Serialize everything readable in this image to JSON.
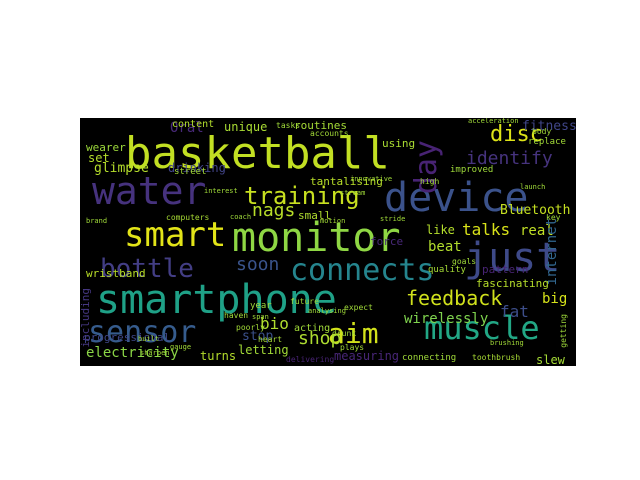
{
  "chart_data": {
    "type": "wordcloud",
    "background": "#000000",
    "colormap": "viridis",
    "words": [
      {
        "text": "basketball",
        "color": "#c2df23",
        "orientation": "horizontal"
      },
      {
        "text": "water",
        "color": "#46327e",
        "orientation": "horizontal"
      },
      {
        "text": "device",
        "color": "#3b528b",
        "orientation": "horizontal"
      },
      {
        "text": "monitor",
        "color": "#8fd744",
        "orientation": "horizontal"
      },
      {
        "text": "smart",
        "color": "#e2e418",
        "orientation": "horizontal"
      },
      {
        "text": "smartphone",
        "color": "#1fa187",
        "orientation": "horizontal"
      },
      {
        "text": "connects",
        "color": "#25858e",
        "orientation": "horizontal"
      },
      {
        "text": "just",
        "color": "#3e4a89",
        "orientation": "horizontal"
      },
      {
        "text": "muscle",
        "color": "#22a785",
        "orientation": "horizontal"
      },
      {
        "text": "aim",
        "color": "#d2e21b",
        "orientation": "horizontal"
      },
      {
        "text": "sensor",
        "color": "#365c8d",
        "orientation": "horizontal"
      },
      {
        "text": "bottle",
        "color": "#433e85",
        "orientation": "horizontal"
      },
      {
        "text": "training",
        "color": "#c8e020",
        "orientation": "horizontal"
      },
      {
        "text": "day",
        "color": "#482374",
        "orientation": "vertical"
      },
      {
        "text": "feedback",
        "color": "#d0e11c",
        "orientation": "horizontal"
      },
      {
        "text": "identify",
        "color": "#46337e",
        "orientation": "horizontal"
      },
      {
        "text": "disc",
        "color": "#dde318",
        "orientation": "horizontal"
      },
      {
        "text": "shop",
        "color": "#addc30",
        "orientation": "horizontal"
      },
      {
        "text": "soon",
        "color": "#3a548c",
        "orientation": "horizontal"
      },
      {
        "text": "nags",
        "color": "#b8de29",
        "orientation": "horizontal"
      },
      {
        "text": "talks",
        "color": "#d8e219",
        "orientation": "horizontal"
      },
      {
        "text": "glimpse",
        "color": "#b5de2b",
        "orientation": "horizontal"
      },
      {
        "text": "unique",
        "color": "#a8db34",
        "orientation": "horizontal"
      },
      {
        "text": "Oral",
        "color": "#482979",
        "orientation": "horizontal"
      },
      {
        "text": "bio",
        "color": "#b0dd2f",
        "orientation": "horizontal"
      },
      {
        "text": "drinking",
        "color": "#414487",
        "orientation": "horizontal"
      },
      {
        "text": "stop",
        "color": "#3b518b",
        "orientation": "horizontal"
      },
      {
        "text": "electricity",
        "color": "#8bd646",
        "orientation": "horizontal"
      },
      {
        "text": "letting",
        "color": "#a2da37",
        "orientation": "horizontal"
      },
      {
        "text": "progressional",
        "color": "#3f4788",
        "orientation": "horizontal"
      },
      {
        "text": "wirelessly",
        "color": "#7fd34e",
        "orientation": "horizontal"
      },
      {
        "text": "fat",
        "color": "#3d4e8a",
        "orientation": "horizontal"
      },
      {
        "text": "big",
        "color": "#d5e21a",
        "orientation": "horizontal"
      },
      {
        "text": "beat",
        "color": "#b2dd2d",
        "orientation": "horizontal"
      },
      {
        "text": "real",
        "color": "#c0df25",
        "orientation": "horizontal"
      },
      {
        "text": "internet",
        "color": "#31668e",
        "orientation": "vertical"
      },
      {
        "text": "Bluetooth",
        "color": "#c5e021",
        "orientation": "horizontal"
      },
      {
        "text": "fitness",
        "color": "#404688",
        "orientation": "horizontal"
      },
      {
        "text": "routines",
        "color": "#a5db36",
        "orientation": "horizontal"
      },
      {
        "text": "measuring",
        "color": "#482677",
        "orientation": "horizontal"
      },
      {
        "text": "turns",
        "color": "#b3dc2b",
        "orientation": "horizontal"
      },
      {
        "text": "fascinating",
        "color": "#b6de2b",
        "orientation": "horizontal"
      },
      {
        "text": "pattern",
        "color": "#482475",
        "orientation": "horizontal"
      },
      {
        "text": "wristband",
        "color": "#b9de28",
        "orientation": "horizontal"
      },
      {
        "text": "wearer",
        "color": "#9dd93b",
        "orientation": "horizontal"
      },
      {
        "text": "set",
        "color": "#b5de2b",
        "orientation": "horizontal"
      },
      {
        "text": "force",
        "color": "#482878",
        "orientation": "horizontal"
      },
      {
        "text": "acting",
        "color": "#a0da39",
        "orientation": "horizontal"
      },
      {
        "text": "slew",
        "color": "#a5db36",
        "orientation": "horizontal"
      },
      {
        "text": "including",
        "color": "#453781",
        "orientation": "vertical"
      },
      {
        "text": "content",
        "color": "#b2dd2d",
        "orientation": "horizontal"
      },
      {
        "text": "tantalising",
        "color": "#b8de29",
        "orientation": "horizontal"
      },
      {
        "text": "like",
        "color": "#b4de2c",
        "orientation": "horizontal"
      },
      {
        "text": "connecting",
        "color": "#a0da39",
        "orientation": "horizontal"
      },
      {
        "text": "toothbrush",
        "color": "#a8db34",
        "orientation": "horizontal"
      },
      {
        "text": "small",
        "color": "#b0dd2f",
        "orientation": "horizontal"
      },
      {
        "text": "replace",
        "color": "#a2da37",
        "orientation": "horizontal"
      },
      {
        "text": "using",
        "color": "#aadc32",
        "orientation": "horizontal"
      },
      {
        "text": "quality",
        "color": "#a5db36",
        "orientation": "horizontal"
      },
      {
        "text": "improved",
        "color": "#9fda3a",
        "orientation": "horizontal"
      },
      {
        "text": "computers",
        "color": "#a8db34",
        "orientation": "horizontal"
      },
      {
        "text": "street",
        "color": "#a2da37",
        "orientation": "horizontal"
      },
      {
        "text": "accounts",
        "color": "#a2da37",
        "orientation": "horizontal"
      },
      {
        "text": "tasks",
        "color": "#a0da39",
        "orientation": "horizontal"
      },
      {
        "text": "heart",
        "color": "#a5db36",
        "orientation": "horizontal"
      },
      {
        "text": "drunk",
        "color": "#a0da39",
        "orientation": "horizontal"
      },
      {
        "text": "delivering",
        "color": "#482374",
        "orientation": "horizontal"
      },
      {
        "text": "plays",
        "color": "#a2da37",
        "orientation": "horizontal"
      },
      {
        "text": "poorly",
        "color": "#a2da37",
        "orientation": "horizontal"
      },
      {
        "text": "year",
        "color": "#9dd93b",
        "orientation": "horizontal"
      },
      {
        "text": "haven",
        "color": "#a0da39",
        "orientation": "horizontal"
      },
      {
        "text": "future",
        "color": "#9fda3a",
        "orientation": "horizontal"
      },
      {
        "text": "expect",
        "color": "#a0da39",
        "orientation": "horizontal"
      },
      {
        "text": "analysing",
        "color": "#a0da39",
        "orientation": "horizontal"
      },
      {
        "text": "high",
        "color": "#a2da37",
        "orientation": "horizontal"
      },
      {
        "text": "acceleration",
        "color": "#a0da39",
        "orientation": "horizontal"
      },
      {
        "text": "body",
        "color": "#a2da37",
        "orientation": "horizontal"
      },
      {
        "text": "goals",
        "color": "#a0da39",
        "orientation": "horizontal"
      },
      {
        "text": "brushing",
        "color": "#a2da37",
        "orientation": "horizontal"
      },
      {
        "text": "getting",
        "color": "#9fda3a",
        "orientation": "vertical"
      },
      {
        "text": "key",
        "color": "#a0da39",
        "orientation": "horizontal"
      },
      {
        "text": "span",
        "color": "#a0da39",
        "orientation": "horizontal"
      },
      {
        "text": "built",
        "color": "#a0da39",
        "orientation": "horizontal"
      },
      {
        "text": "innovative",
        "color": "#a0da39",
        "orientation": "horizontal"
      },
      {
        "text": "stream",
        "color": "#a0da39",
        "orientation": "horizontal"
      },
      {
        "text": "coach",
        "color": "#9fda3a",
        "orientation": "horizontal"
      },
      {
        "text": "interest",
        "color": "#a0da39",
        "orientation": "horizontal"
      },
      {
        "text": "stride",
        "color": "#a0da39",
        "orientation": "horizontal"
      },
      {
        "text": "motion",
        "color": "#a2da37",
        "orientation": "horizontal"
      },
      {
        "text": "sharpen",
        "color": "#a0da39",
        "orientation": "horizontal"
      },
      {
        "text": "gauge",
        "color": "#a0da39",
        "orientation": "horizontal"
      },
      {
        "text": "launch",
        "color": "#a0da39",
        "orientation": "horizontal"
      },
      {
        "text": "brand",
        "color": "#a0da39",
        "orientation": "horizontal"
      }
    ]
  }
}
